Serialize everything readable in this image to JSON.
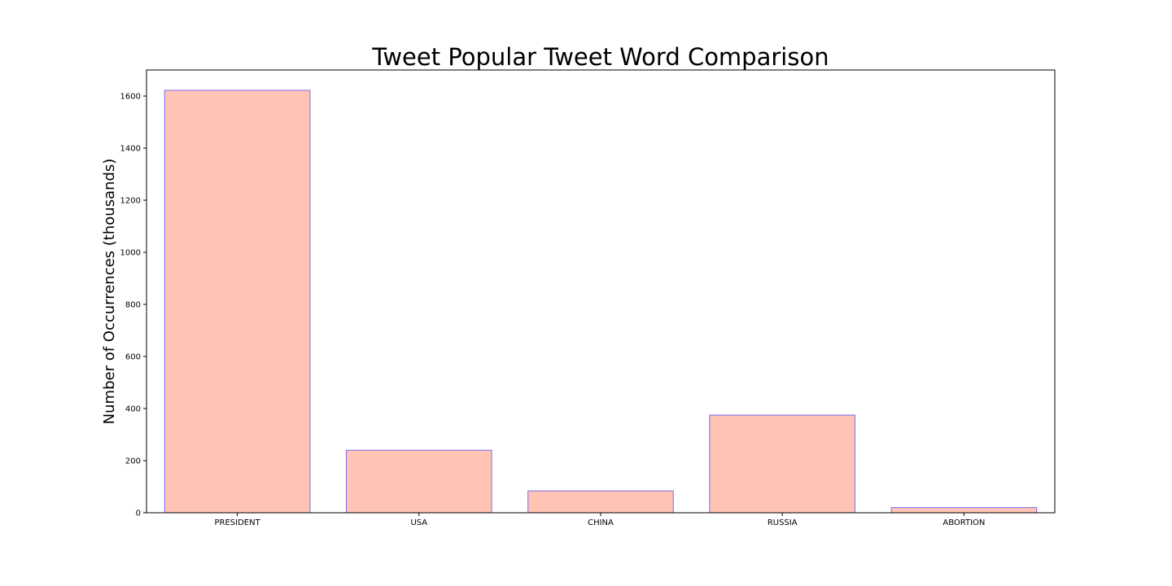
{
  "chart_data": {
    "type": "bar",
    "title": "Tweet Popular Tweet Word Comparison",
    "xlabel": "",
    "ylabel": "Number of Occurrences (thousands)",
    "categories": [
      "PRESIDENT",
      "USA",
      "CHINA",
      "RUSSIA",
      "ABORTION"
    ],
    "values": [
      1622,
      240,
      84,
      375,
      20
    ],
    "ylim": [
      0,
      1700
    ],
    "yticks": [
      0,
      200,
      400,
      600,
      800,
      1000,
      1200,
      1400,
      1600
    ],
    "grid": false,
    "colors": {
      "bar_fill": "#ffc4b4",
      "bar_edge": "#7b68ee",
      "axis": "#000000"
    }
  }
}
